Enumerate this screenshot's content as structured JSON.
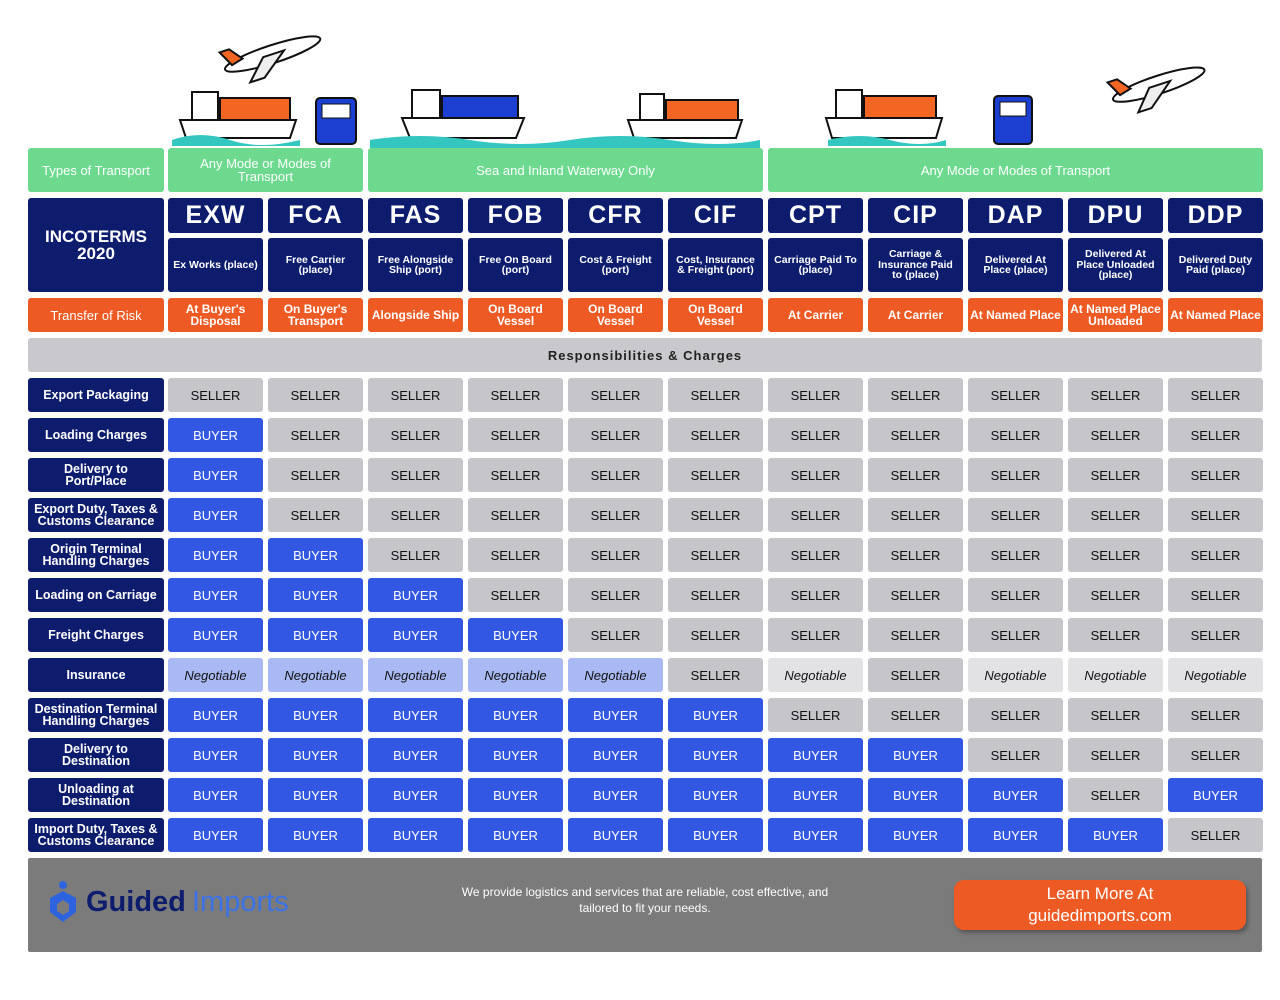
{
  "transport_label": "Types of Transport",
  "transport_groups": [
    "Any Mode or Modes of Transport",
    "Sea and Inland Waterway Only",
    "Any Mode or Modes of Transport"
  ],
  "title": "INCOTERMS 2020",
  "terms": [
    {
      "code": "EXW",
      "name": "Ex Works (place)",
      "risk": "At Buyer's Disposal"
    },
    {
      "code": "FCA",
      "name": "Free Carrier (place)",
      "risk": "On Buyer's Transport"
    },
    {
      "code": "FAS",
      "name": "Free Alongside Ship (port)",
      "risk": "Alongside Ship"
    },
    {
      "code": "FOB",
      "name": "Free On Board (port)",
      "risk": "On Board Vessel"
    },
    {
      "code": "CFR",
      "name": "Cost & Freight (port)",
      "risk": "On Board Vessel"
    },
    {
      "code": "CIF",
      "name": "Cost, Insurance & Freight (port)",
      "risk": "On Board Vessel"
    },
    {
      "code": "CPT",
      "name": "Carriage Paid To (place)",
      "risk": "At Carrier"
    },
    {
      "code": "CIP",
      "name": "Carriage & Insurance Paid to (place)",
      "risk": "At Carrier"
    },
    {
      "code": "DAP",
      "name": "Delivered At Place (place)",
      "risk": "At Named Place"
    },
    {
      "code": "DPU",
      "name": "Delivered At Place Unloaded (place)",
      "risk": "At Named Place Unloaded"
    },
    {
      "code": "DDP",
      "name": "Delivered Duty Paid (place)",
      "risk": "At Named Place"
    }
  ],
  "risk_label": "Transfer of Risk",
  "section_title": "Responsibilities & Charges",
  "cell_styles": {
    "SELLER": {
      "bg": "#c5c5ca",
      "color": "#111111",
      "italic": false
    },
    "BUYER": {
      "bg": "#3258e3",
      "color": "#ffffff",
      "italic": false
    },
    "Negotiable": {
      "bg": "#a9b9f3",
      "color": "#111111",
      "italic": true
    }
  },
  "rows": [
    {
      "label": "Export Packaging",
      "cells": [
        "SELLER",
        "SELLER",
        "SELLER",
        "SELLER",
        "SELLER",
        "SELLER",
        "SELLER",
        "SELLER",
        "SELLER",
        "SELLER",
        "SELLER"
      ]
    },
    {
      "label": "Loading Charges",
      "cells": [
        "BUYER",
        "SELLER",
        "SELLER",
        "SELLER",
        "SELLER",
        "SELLER",
        "SELLER",
        "SELLER",
        "SELLER",
        "SELLER",
        "SELLER"
      ]
    },
    {
      "label": "Delivery to Port/Place",
      "cells": [
        "BUYER",
        "SELLER",
        "SELLER",
        "SELLER",
        "SELLER",
        "SELLER",
        "SELLER",
        "SELLER",
        "SELLER",
        "SELLER",
        "SELLER"
      ]
    },
    {
      "label": "Export Duty, Taxes & Customs Clearance",
      "cells": [
        "BUYER",
        "SELLER",
        "SELLER",
        "SELLER",
        "SELLER",
        "SELLER",
        "SELLER",
        "SELLER",
        "SELLER",
        "SELLER",
        "SELLER"
      ]
    },
    {
      "label": "Origin Terminal Handling Charges",
      "cells": [
        "BUYER",
        "BUYER",
        "SELLER",
        "SELLER",
        "SELLER",
        "SELLER",
        "SELLER",
        "SELLER",
        "SELLER",
        "SELLER",
        "SELLER"
      ]
    },
    {
      "label": "Loading on Carriage",
      "cells": [
        "BUYER",
        "BUYER",
        "BUYER",
        "SELLER",
        "SELLER",
        "SELLER",
        "SELLER",
        "SELLER",
        "SELLER",
        "SELLER",
        "SELLER"
      ]
    },
    {
      "label": "Freight Charges",
      "cells": [
        "BUYER",
        "BUYER",
        "BUYER",
        "BUYER",
        "SELLER",
        "SELLER",
        "SELLER",
        "SELLER",
        "SELLER",
        "SELLER",
        "SELLER"
      ]
    },
    {
      "label": "Insurance",
      "cells": [
        "Negotiable",
        "Negotiable",
        "Negotiable",
        "Negotiable",
        "Negotiable",
        "SELLER",
        "Negotiable",
        "SELLER",
        "Negotiable",
        "Negotiable",
        "Negotiable"
      ],
      "colors": [
        "#a9b9f3",
        "#a9b9f3",
        "#a9b9f3",
        "#a9b9f3",
        "#a9b9f3",
        "#c5c5ca",
        "#e2e2e5",
        "#c5c5ca",
        "#e2e2e5",
        "#e2e2e5",
        "#e2e2e5"
      ]
    },
    {
      "label": "Destination Terminal Handling Charges",
      "cells": [
        "BUYER",
        "BUYER",
        "BUYER",
        "BUYER",
        "BUYER",
        "BUYER",
        "SELLER",
        "SELLER",
        "SELLER",
        "SELLER",
        "SELLER"
      ]
    },
    {
      "label": "Delivery to Destination",
      "cells": [
        "BUYER",
        "BUYER",
        "BUYER",
        "BUYER",
        "BUYER",
        "BUYER",
        "BUYER",
        "BUYER",
        "SELLER",
        "SELLER",
        "SELLER"
      ]
    },
    {
      "label": "Unloading at Destination",
      "cells": [
        "BUYER",
        "BUYER",
        "BUYER",
        "BUYER",
        "BUYER",
        "BUYER",
        "BUYER",
        "BUYER",
        "BUYER",
        "SELLER",
        "BUYER"
      ]
    },
    {
      "label": "Import Duty, Taxes & Customs Clearance",
      "cells": [
        "BUYER",
        "BUYER",
        "BUYER",
        "BUYER",
        "BUYER",
        "BUYER",
        "BUYER",
        "BUYER",
        "BUYER",
        "BUYER",
        "SELLER"
      ]
    }
  ],
  "footer": {
    "brand_1": "Guided",
    "brand_2": "Imports",
    "tagline": "We provide logistics and services that are reliable, cost effective, and tailored to fit your needs.",
    "cta": "Learn More At guidedimports.com"
  }
}
